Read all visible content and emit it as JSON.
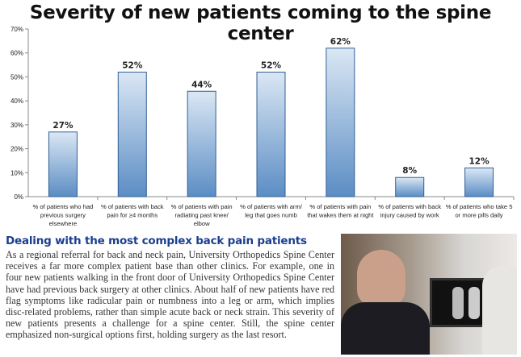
{
  "chart_data": {
    "type": "bar",
    "title": "Severity of new patients coming to the spine center",
    "categories": [
      [
        "% of patients who had",
        "previous surgery",
        "elsewhere"
      ],
      [
        "% of patients with back",
        "pain for ≥4 months"
      ],
      [
        "% of patients with pain",
        "radiating past knee/",
        "elbow"
      ],
      [
        "% of patients with arm/",
        "leg that goes numb"
      ],
      [
        "% of patients with pain",
        "that wakes them at night"
      ],
      [
        "% of patients with back",
        "injury caused   by work"
      ],
      [
        "% of patients who take 5",
        "or more pills daily"
      ]
    ],
    "values": [
      27,
      52,
      44,
      52,
      62,
      8,
      12
    ],
    "data_labels": [
      "27%",
      "52%",
      "44%",
      "52%",
      "62%",
      "8%",
      "12%"
    ],
    "ylim": [
      0,
      70
    ],
    "yticks": [
      "0%",
      "10%",
      "20%",
      "30%",
      "40%",
      "50%",
      "60%",
      "70%"
    ],
    "grid": false,
    "colors": {
      "bar_top": "#dbe7f4",
      "bar_bottom": "#5b8dc4",
      "bar_border": "#2f5f95"
    }
  },
  "article": {
    "heading": "Dealing with the most complex back pain patients",
    "body": "As a regional referral for back and neck pain, University Orthopedics Spine Center receives a far more complex patient base than other clinics. For example, one in four new patients walking in the front door of University Orthopedics Spine Center have had previous back surgery at other clinics. About half of new patients have red flag symptoms like radicular pain or numbness into a leg or arm, which implies disc-related problems, rather than simple acute back or neck strain. This severity of new patients presents a challenge for a spine center. Still, the spine center emphasized non-surgical options first, holding surgery as the last resort."
  }
}
